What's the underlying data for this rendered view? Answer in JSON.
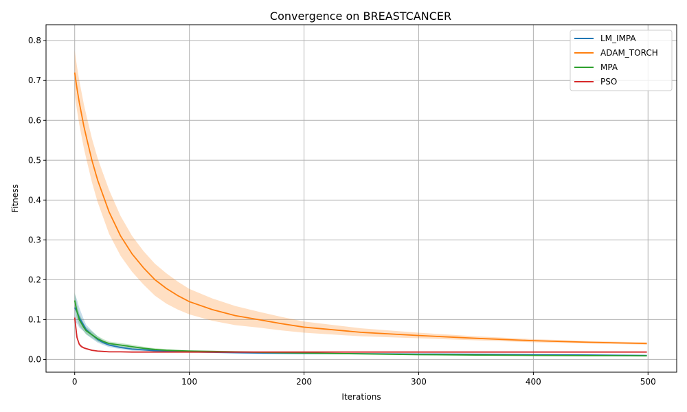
{
  "chart_data": {
    "type": "line",
    "title": "Convergence on BREASTCANCER",
    "xlabel": "Iterations",
    "ylabel": "Fitness",
    "xlim": [
      -25,
      525
    ],
    "ylim": [
      -0.032,
      0.84
    ],
    "x_ticks": [
      0,
      100,
      200,
      300,
      400,
      500
    ],
    "y_ticks": [
      0.0,
      0.1,
      0.2,
      0.3,
      0.4,
      0.5,
      0.6,
      0.7,
      0.8
    ],
    "grid": true,
    "legend_position": "top-right",
    "x": [
      0,
      2,
      4,
      6,
      8,
      10,
      15,
      20,
      25,
      30,
      40,
      50,
      60,
      70,
      80,
      90,
      100,
      120,
      140,
      160,
      180,
      200,
      250,
      300,
      350,
      400,
      450,
      499
    ],
    "series": [
      {
        "name": "LM_IMPA",
        "color": "#1f77b4",
        "values": [
          0.13,
          0.12,
          0.105,
          0.095,
          0.085,
          0.075,
          0.062,
          0.05,
          0.042,
          0.036,
          0.03,
          0.026,
          0.024,
          0.022,
          0.021,
          0.02,
          0.019,
          0.018,
          0.017,
          0.016,
          0.0155,
          0.015,
          0.0145,
          0.0135,
          0.013,
          0.012,
          0.011,
          0.01
        ],
        "band": [
          0.035,
          0.03,
          0.025,
          0.02,
          0.015,
          0.012,
          0.01,
          0.008,
          0.006,
          0.005,
          0.004,
          0.004,
          0.003,
          0.003,
          0.003,
          0.002,
          0.002,
          0.002,
          0.002,
          0.002,
          0.001,
          0.001,
          0.001,
          0.001,
          0.001,
          0.001,
          0.001,
          0.001
        ]
      },
      {
        "name": "ADAM_TORCH",
        "color": "#ff7f0e",
        "values": [
          0.72,
          0.68,
          0.645,
          0.615,
          0.585,
          0.56,
          0.5,
          0.45,
          0.41,
          0.37,
          0.31,
          0.265,
          0.23,
          0.2,
          0.178,
          0.16,
          0.145,
          0.125,
          0.11,
          0.1,
          0.09,
          0.081,
          0.068,
          0.06,
          0.053,
          0.047,
          0.043,
          0.04
        ],
        "band": [
          0.055,
          0.055,
          0.055,
          0.055,
          0.055,
          0.055,
          0.055,
          0.055,
          0.055,
          0.055,
          0.05,
          0.045,
          0.042,
          0.04,
          0.038,
          0.035,
          0.032,
          0.028,
          0.024,
          0.02,
          0.017,
          0.014,
          0.01,
          0.007,
          0.005,
          0.004,
          0.003,
          0.003
        ]
      },
      {
        "name": "MPA",
        "color": "#2ca02c",
        "values": [
          0.148,
          0.12,
          0.1,
          0.09,
          0.08,
          0.072,
          0.062,
          0.052,
          0.045,
          0.04,
          0.036,
          0.032,
          0.028,
          0.025,
          0.023,
          0.022,
          0.021,
          0.02,
          0.019,
          0.018,
          0.017,
          0.016,
          0.014,
          0.012,
          0.011,
          0.01,
          0.0095,
          0.009
        ],
        "band": [
          0.02,
          0.018,
          0.015,
          0.013,
          0.01,
          0.009,
          0.008,
          0.007,
          0.006,
          0.005,
          0.005,
          0.005,
          0.004,
          0.003,
          0.003,
          0.002,
          0.002,
          0.002,
          0.002,
          0.002,
          0.001,
          0.001,
          0.001,
          0.001,
          0.001,
          0.001,
          0.001,
          0.001
        ]
      },
      {
        "name": "PSO",
        "color": "#d62728",
        "values": [
          0.105,
          0.055,
          0.038,
          0.032,
          0.029,
          0.027,
          0.023,
          0.021,
          0.02,
          0.019,
          0.019,
          0.0185,
          0.0185,
          0.0185,
          0.0185,
          0.0185,
          0.0185,
          0.0185,
          0.0185,
          0.0185,
          0.0185,
          0.0185,
          0.0185,
          0.0185,
          0.0185,
          0.0185,
          0.0185,
          0.0185
        ],
        "band": [
          0.008,
          0.006,
          0.004,
          0.003,
          0.002,
          0.002,
          0.002,
          0.001,
          0.001,
          0.001,
          0.001,
          0.001,
          0.001,
          0.001,
          0.001,
          0.001,
          0.001,
          0.001,
          0.001,
          0.001,
          0.001,
          0.001,
          0.001,
          0.001,
          0.001,
          0.001,
          0.001,
          0.001
        ]
      }
    ]
  }
}
